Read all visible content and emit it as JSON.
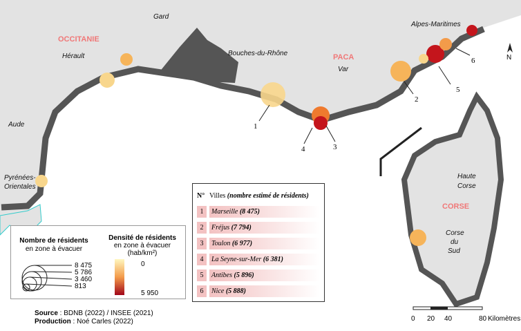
{
  "regions": {
    "occitanie": "OCCITANIE",
    "paca": "PACA",
    "corse": "CORSE"
  },
  "departments": {
    "gard": "Gard",
    "herault": "Hérault",
    "bdr": "Bouches-du-Rhône",
    "var": "Var",
    "am": "Alpes-Maritimes",
    "aude": "Aude",
    "po1": "Pyrénées-",
    "po2": "Orientales",
    "hc1": "Haute",
    "hc2": "Corse",
    "cs1": "Corse",
    "cs2": "du",
    "cs3": "Sud"
  },
  "callouts": [
    "1",
    "2",
    "3",
    "4",
    "5",
    "6"
  ],
  "table": {
    "header": {
      "n": "N°",
      "villes": "Villes",
      "note": "(nombre estimé de résidents)"
    },
    "rows": [
      {
        "n": "1",
        "city": "Marseille",
        "residents": "(8 475)"
      },
      {
        "n": "2",
        "city": "Fréjus",
        "residents": "(7 794)"
      },
      {
        "n": "3",
        "city": "Toulon",
        "residents": "(6 977)"
      },
      {
        "n": "4",
        "city": "La Seyne-sur-Mer",
        "residents": "(6 381)"
      },
      {
        "n": "5",
        "city": "Antibes",
        "residents": "(5 896)"
      },
      {
        "n": "6",
        "city": "Nice",
        "residents": "(5 888)"
      }
    ]
  },
  "legend": {
    "size_title": "Nombre de résidents",
    "size_sub": "en zone à évacuer",
    "sizes": [
      "8 475",
      "5 786",
      "3 460",
      "813"
    ],
    "density_title": "Densité de résidents",
    "density_sub": "en zone à évacuer",
    "density_unit": "(hab/km²)",
    "density_min": "0",
    "density_max": "5 950"
  },
  "source": {
    "label": "Source",
    "text": " : BDNB (2022) / INSEE (2021)"
  },
  "production": {
    "label": "Production",
    "text": " : Noé Carles (2022)"
  },
  "scale": {
    "ticks": [
      "0",
      "20",
      "40",
      "80"
    ],
    "unit": "Kilomètres"
  },
  "north": "N"
}
